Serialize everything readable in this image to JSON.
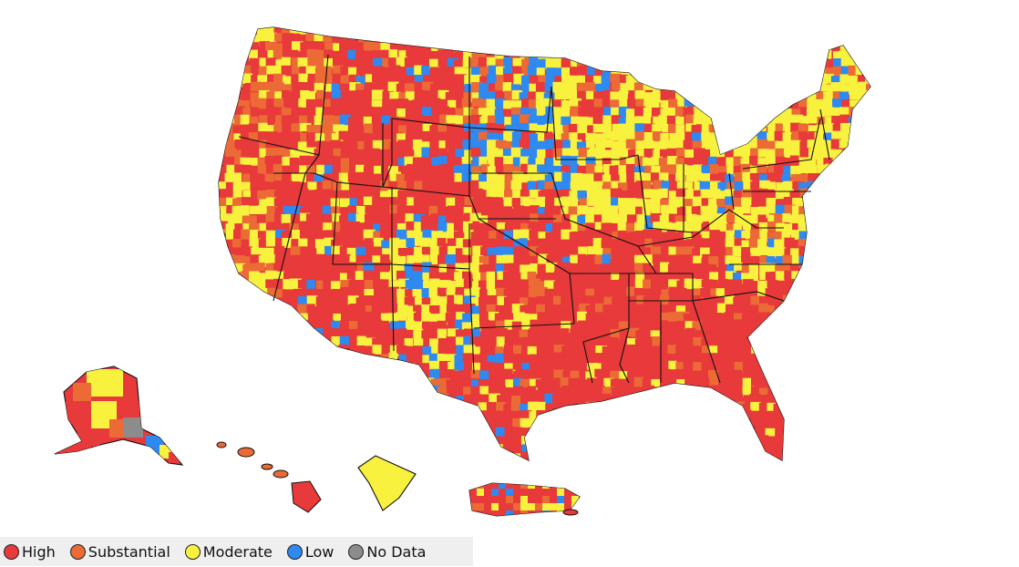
{
  "colors": {
    "high": "#e8393b",
    "substantial": "#ec6a35",
    "moderate": "#f8f23e",
    "low": "#2e89f0",
    "no_data": "#8c8c8c"
  },
  "legend": {
    "items": [
      {
        "key": "high",
        "label": "High",
        "color": "#e8393b"
      },
      {
        "key": "substantial",
        "label": "Substantial",
        "color": "#ec6a35"
      },
      {
        "key": "moderate",
        "label": "Moderate",
        "color": "#f8f23e"
      },
      {
        "key": "low",
        "label": "Low",
        "color": "#2e89f0"
      },
      {
        "key": "no_data",
        "label": "No Data",
        "color": "#8c8c8c"
      }
    ]
  },
  "map": {
    "regions": [
      {
        "name": "contiguous-us",
        "dominant_level": "high"
      },
      {
        "name": "alaska",
        "dominant_level": "high"
      },
      {
        "name": "hawaii",
        "dominant_level": "substantial"
      },
      {
        "name": "guam-territory",
        "dominant_level": "moderate"
      },
      {
        "name": "puerto-rico",
        "dominant_level": "high"
      }
    ]
  }
}
